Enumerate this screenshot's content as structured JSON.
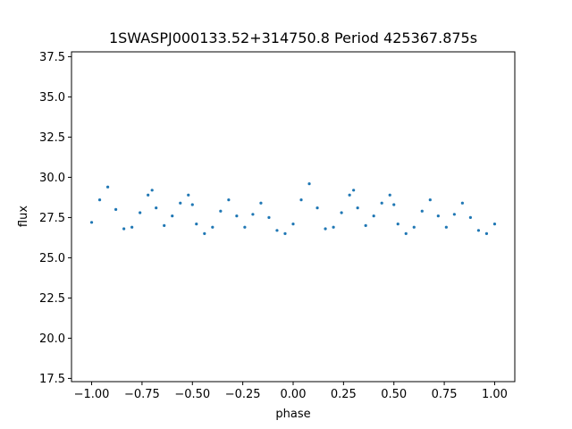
{
  "chart_data": {
    "type": "scatter",
    "title": "1SWASPJ000133.52+314750.8 Period 425367.875s",
    "xlabel": "phase",
    "ylabel": "flux",
    "xlim": [
      -1.1,
      1.1
    ],
    "ylim": [
      17.3,
      37.8
    ],
    "xticks": [
      -1.0,
      -0.75,
      -0.5,
      -0.25,
      0.0,
      0.25,
      0.5,
      0.75,
      1.0
    ],
    "xtick_labels": [
      "−1.00",
      "−0.75",
      "−0.50",
      "−0.25",
      "0.00",
      "0.25",
      "0.50",
      "0.75",
      "1.00"
    ],
    "yticks": [
      17.5,
      20.0,
      22.5,
      25.0,
      27.5,
      30.0,
      32.5,
      35.0,
      37.5
    ],
    "ytick_labels": [
      "17.5",
      "20.0",
      "22.5",
      "25.0",
      "27.5",
      "30.0",
      "32.5",
      "35.0",
      "37.5"
    ],
    "grid": false,
    "marker_color": "#1f77b4",
    "series": [
      {
        "x": [
          -1.0,
          -0.96,
          -0.92,
          -0.88,
          -0.84,
          -0.8,
          -0.76,
          -0.72,
          -0.7,
          -0.68,
          -0.64,
          -0.6,
          -0.56,
          -0.52,
          -0.5,
          -0.48,
          -0.44,
          -0.4,
          -0.36,
          -0.32,
          -0.28,
          -0.24,
          -0.2,
          -0.16,
          -0.12,
          -0.08,
          -0.04,
          0.0,
          0.04,
          0.08,
          0.12,
          0.16,
          0.2,
          0.24,
          0.28,
          0.3,
          0.32,
          0.36,
          0.4,
          0.44,
          0.48,
          0.5,
          0.52,
          0.56,
          0.6,
          0.64,
          0.68,
          0.72,
          0.76,
          0.8,
          0.84,
          0.88,
          0.92,
          0.96,
          1.0
        ],
        "y": [
          27.2,
          28.6,
          29.4,
          28.0,
          26.8,
          26.9,
          27.8,
          28.9,
          29.2,
          28.1,
          27.0,
          27.6,
          28.4,
          28.9,
          28.3,
          27.1,
          26.5,
          26.9,
          27.9,
          28.6,
          27.6,
          26.9,
          27.7,
          28.4,
          27.5,
          26.7,
          26.5,
          27.1,
          28.6,
          29.6,
          28.1,
          26.8,
          26.9,
          27.8,
          28.9,
          29.2,
          28.1,
          27.0,
          27.6,
          28.4,
          28.9,
          28.3,
          27.1,
          26.5,
          26.9,
          27.9,
          28.6,
          27.6,
          26.9,
          27.7,
          28.4,
          27.5,
          26.7,
          26.5,
          27.1
        ]
      }
    ]
  }
}
